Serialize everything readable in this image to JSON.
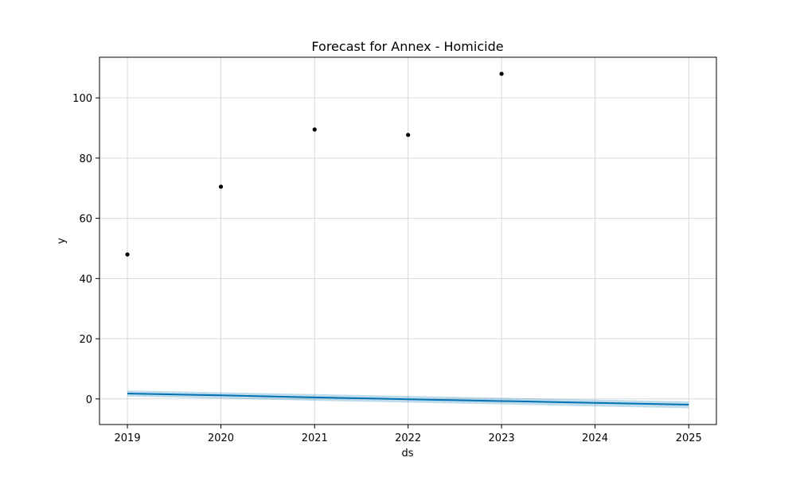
{
  "chart_data": {
    "type": "line",
    "title": "Forecast for Annex - Homicide",
    "xlabel": "ds",
    "ylabel": "y",
    "x_ticks": [
      "2019",
      "2020",
      "2021",
      "2022",
      "2023",
      "2024",
      "2025"
    ],
    "y_ticks": [
      0,
      20,
      40,
      60,
      80,
      100
    ],
    "xlim": [
      "2018-09-14",
      "2025-04-19"
    ],
    "ylim": [
      -8.5,
      113.5
    ],
    "grid": true,
    "colors": {
      "observed": "#000000",
      "forecast": "#0072B2",
      "interval": "#0072B2"
    },
    "observed": {
      "x": [
        "2019-01-01",
        "2020-01-01",
        "2021-01-01",
        "2022-01-01",
        "2023-01-01"
      ],
      "y": [
        48,
        70.5,
        89.5,
        87.7,
        108
      ]
    },
    "forecast": {
      "x": [
        "2019-01-01",
        "2020-01-01",
        "2021-01-01",
        "2022-01-01",
        "2023-01-01",
        "2024-01-01",
        "2025-01-01"
      ],
      "yhat": [
        1.8,
        1.2,
        0.5,
        -0.1,
        -0.7,
        -1.3,
        -1.9
      ],
      "yhat_lower": [
        0.8,
        0.1,
        -0.6,
        -1.2,
        -1.8,
        -2.5,
        -3.1
      ],
      "yhat_upper": [
        2.8,
        2.2,
        1.6,
        1.0,
        0.4,
        -0.2,
        -0.8
      ]
    }
  }
}
